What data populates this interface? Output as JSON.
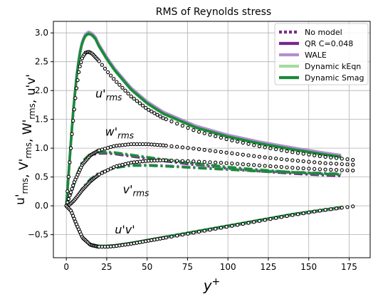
{
  "chart_data": {
    "type": "line",
    "title": "RMS of Reynolds stress",
    "xlabel": "y",
    "xlabel_sup": "+",
    "ylabel_parts": [
      {
        "t": "u'",
        "sub": "rms"
      },
      {
        "t": ", V'",
        "sub": "rms"
      },
      {
        "t": ", W'",
        "sub": "rms"
      },
      {
        "t": ", u'v'",
        "sub": ""
      }
    ],
    "xlim": [
      -8,
      188
    ],
    "ylim": [
      -0.9,
      3.2
    ],
    "xticks": [
      0,
      25,
      50,
      75,
      100,
      125,
      150,
      175
    ],
    "yticks": [
      -0.5,
      0.0,
      0.5,
      1.0,
      1.5,
      2.0,
      2.5,
      3.0
    ],
    "xtick_labels": [
      "0",
      "25",
      "50",
      "75",
      "100",
      "125",
      "150",
      "175"
    ],
    "ytick_labels": [
      "−0.5",
      "0.0",
      "0.5",
      "1.0",
      "1.5",
      "2.0",
      "2.5",
      "3.0"
    ],
    "grid": true,
    "legend_position": "top-right",
    "legend": [
      {
        "label": "No model",
        "color": "#7b2d8e",
        "style": "dotted"
      },
      {
        "label": "QR C=0.048",
        "color": "#76288f",
        "style": "solid"
      },
      {
        "label": "WALE",
        "color": "#b48ed0",
        "style": "solid"
      },
      {
        "label": "Dynamic kEqn",
        "color": "#a6db9e",
        "style": "solid"
      },
      {
        "label": "Dynamic Smag",
        "color": "#1a8a3c",
        "style": "solid"
      }
    ],
    "annotations": [
      {
        "t": "u'",
        "sub": "rms",
        "x": 18,
        "y": 1.88
      },
      {
        "t": "w'",
        "sub": "rms",
        "x": 24,
        "y": 1.22
      },
      {
        "t": "v'",
        "sub": "rms",
        "x": 35,
        "y": 0.22
      },
      {
        "t": "u'v'",
        "sub": "",
        "x": 30,
        "y": -0.48
      }
    ],
    "reference_dns": {
      "u_rms": {
        "x": [
          0,
          2,
          4,
          6,
          8,
          10,
          12,
          14,
          16,
          20,
          25,
          30,
          40,
          50,
          60,
          80,
          100,
          120,
          140,
          160,
          180
        ],
        "y": [
          0,
          0.72,
          1.42,
          1.98,
          2.38,
          2.58,
          2.66,
          2.67,
          2.64,
          2.52,
          2.34,
          2.18,
          1.9,
          1.68,
          1.52,
          1.3,
          1.15,
          1.03,
          0.93,
          0.85,
          0.79
        ]
      },
      "w_rms": {
        "x": [
          0,
          2,
          5,
          10,
          15,
          20,
          30,
          40,
          50,
          60,
          80,
          100,
          120,
          140,
          160,
          180
        ],
        "y": [
          0,
          0.17,
          0.42,
          0.72,
          0.88,
          0.96,
          1.04,
          1.07,
          1.07,
          1.05,
          0.99,
          0.92,
          0.85,
          0.79,
          0.74,
          0.71
        ]
      },
      "v_rms": {
        "x": [
          0,
          2,
          5,
          10,
          15,
          20,
          30,
          40,
          50,
          60,
          80,
          100,
          120,
          140,
          160,
          180
        ],
        "y": [
          0,
          0.02,
          0.1,
          0.28,
          0.43,
          0.54,
          0.68,
          0.75,
          0.78,
          0.79,
          0.77,
          0.74,
          0.7,
          0.66,
          0.63,
          0.61
        ]
      },
      "uv": {
        "x": [
          0,
          3,
          6,
          10,
          15,
          20,
          25,
          30,
          40,
          50,
          60,
          80,
          100,
          120,
          140,
          160,
          180
        ],
        "y": [
          0,
          -0.09,
          -0.3,
          -0.55,
          -0.68,
          -0.71,
          -0.71,
          -0.7,
          -0.66,
          -0.61,
          -0.56,
          -0.46,
          -0.36,
          -0.26,
          -0.16,
          -0.07,
          0.0
        ]
      }
    },
    "models": {
      "u_rms": {
        "x": [
          0,
          2,
          4,
          6,
          8,
          10,
          12,
          14,
          16,
          18,
          20,
          25,
          30,
          40,
          50,
          60,
          80,
          100,
          120,
          140,
          160,
          170
        ],
        "y": [
          0,
          0.78,
          1.55,
          2.15,
          2.6,
          2.85,
          2.96,
          2.99,
          2.96,
          2.9,
          2.78,
          2.55,
          2.35,
          2.02,
          1.78,
          1.6,
          1.36,
          1.2,
          1.08,
          0.98,
          0.89,
          0.85
        ]
      },
      "w_rms": {
        "x": [
          0,
          3,
          6,
          10,
          15,
          20,
          25,
          30,
          40,
          50,
          60,
          80,
          100,
          120,
          140,
          160,
          170
        ],
        "y": [
          0,
          0.22,
          0.5,
          0.77,
          0.9,
          0.93,
          0.93,
          0.92,
          0.88,
          0.84,
          0.8,
          0.73,
          0.67,
          0.62,
          0.58,
          0.55,
          0.54
        ]
      },
      "v_rms": {
        "x": [
          0,
          3,
          6,
          10,
          15,
          20,
          30,
          40,
          50,
          60,
          80,
          100,
          120,
          140,
          160,
          170
        ],
        "y": [
          0,
          0.03,
          0.13,
          0.3,
          0.46,
          0.56,
          0.66,
          0.7,
          0.7,
          0.69,
          0.66,
          0.63,
          0.6,
          0.58,
          0.56,
          0.55
        ]
      },
      "uv": {
        "x": [
          0,
          3,
          6,
          10,
          15,
          20,
          25,
          30,
          40,
          50,
          60,
          80,
          100,
          120,
          140,
          160,
          170
        ],
        "y": [
          0,
          -0.1,
          -0.33,
          -0.57,
          -0.68,
          -0.71,
          -0.71,
          -0.7,
          -0.66,
          -0.61,
          -0.56,
          -0.46,
          -0.36,
          -0.26,
          -0.16,
          -0.08,
          -0.04
        ]
      }
    },
    "model_offsets_note_free": [
      {
        "name": "QR C=0.048",
        "color": "#76288f",
        "du": 0.0,
        "dw": -0.02,
        "dv": 0.0
      },
      {
        "name": "WALE",
        "color": "#b48ed0",
        "du": 0.03,
        "dw": 0.0,
        "dv": 0.01
      },
      {
        "name": "Dynamic kEqn",
        "color": "#a6db9e",
        "du": -0.01,
        "dw": 0.01,
        "dv": 0.0
      },
      {
        "name": "Dynamic Smag",
        "color": "#1a8a3c",
        "du": 0.0,
        "dw": 0.0,
        "dv": 0.0
      }
    ]
  }
}
